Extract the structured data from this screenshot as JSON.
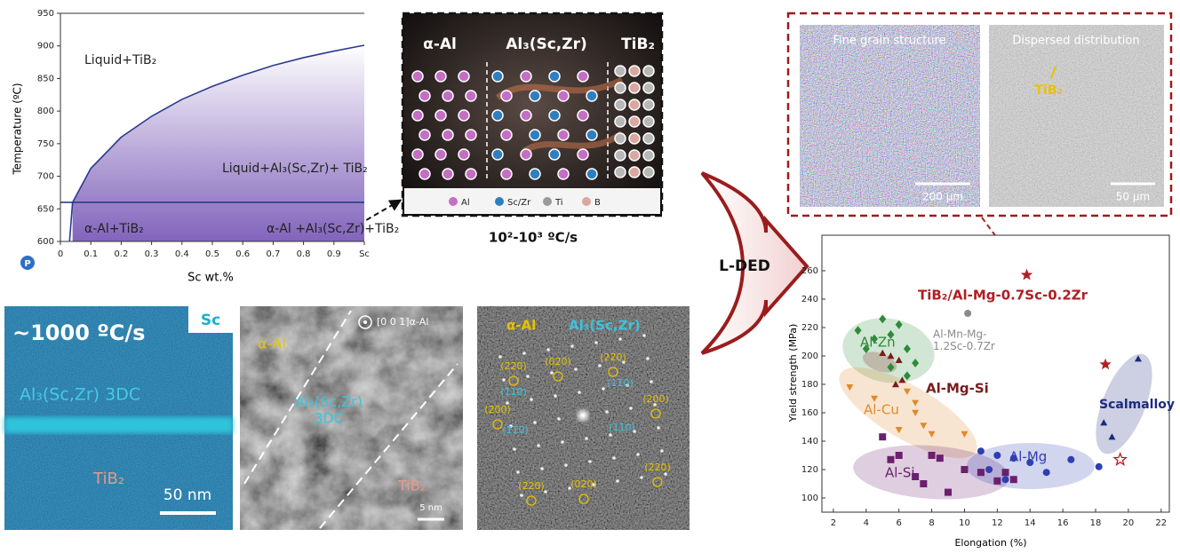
{
  "chart_data": [
    {
      "type": "line",
      "xlabel": "Sc wt.%",
      "ylabel": "Temperature (ºC)",
      "xlim": [
        0,
        1
      ],
      "ylim": [
        600,
        950
      ],
      "xticks": [
        0,
        0.1,
        0.2,
        0.3,
        0.4,
        0.5,
        0.6,
        0.7,
        0.8,
        0.9,
        {
          "value": 1,
          "label": "Sc"
        }
      ],
      "yticks": [
        600,
        650,
        700,
        750,
        800,
        850,
        900,
        950
      ],
      "annotations": [
        "Liquid+TiB₂",
        "Liquid+Al₃(Sc,Zr)+ TiB₂",
        "α-Al+TiB₂",
        "α-Al +Al₃(Sc,Zr)+TiB₂"
      ],
      "series": [
        {
          "color": "#2b3a8f",
          "fill": "#7b5cb8",
          "x": [
            0.04,
            0.1,
            0.2,
            0.3,
            0.4,
            0.5,
            0.6,
            0.7,
            0.8,
            0.9,
            1.0
          ],
          "values": [
            660,
            712,
            760,
            792,
            818,
            838,
            855,
            870,
            882,
            892,
            901
          ]
        },
        {
          "color": "#2b3a8f",
          "x": [
            0,
            1
          ],
          "values": [
            660,
            660
          ]
        },
        {
          "color": "#2b3a8f",
          "x": [
            0.03,
            0.04
          ],
          "values": [
            600,
            660
          ]
        }
      ]
    },
    {
      "type": "scatter",
      "xlabel": "Elongation (%)",
      "ylabel": "Yield strength (MPa)",
      "xlim": [
        1.3,
        22.5
      ],
      "ylim": [
        90,
        285
      ],
      "xticks": [
        2,
        4,
        6,
        8,
        10,
        12,
        14,
        16,
        18,
        20,
        22
      ],
      "yticks": [
        100,
        120,
        140,
        160,
        180,
        200,
        220,
        240,
        260
      ],
      "series": [
        {
          "name": "Al-Zn",
          "color": "#2e8b3a",
          "marker": "diamond",
          "x": [
            3.5,
            4.5,
            5,
            5.5,
            6,
            6.5,
            4,
            5.5,
            6.5,
            7
          ],
          "values": [
            218,
            212,
            226,
            215,
            222,
            205,
            205,
            192,
            186,
            195
          ]
        },
        {
          "name": "Al-Mg-Si",
          "color": "#7a1c1c",
          "marker": "triangle",
          "x": [
            5,
            5.5,
            6,
            6.2,
            5.8
          ],
          "values": [
            202,
            200,
            197,
            183,
            180
          ]
        },
        {
          "name": "Al-Cu",
          "color": "#e08a2c",
          "marker": "triangle-down",
          "x": [
            3,
            4.5,
            6.5,
            7,
            7,
            7.5,
            8,
            10,
            6
          ],
          "values": [
            178,
            170,
            175,
            167,
            160,
            151,
            145,
            145,
            148
          ]
        },
        {
          "name": "Al-Si",
          "color": "#6b1f6e",
          "marker": "square",
          "x": [
            5,
            5.5,
            6,
            7,
            8,
            8.5,
            9,
            10,
            11,
            12,
            12.5,
            13,
            7.5
          ],
          "values": [
            143,
            127,
            130,
            115,
            130,
            128,
            104,
            120,
            118,
            112,
            118,
            113,
            110
          ]
        },
        {
          "name": "Al-Mg",
          "color": "#2f3fb0",
          "marker": "circle",
          "x": [
            11,
            12,
            13,
            14,
            15,
            16.5,
            18.2,
            11.5,
            12.5
          ],
          "values": [
            133,
            130,
            128,
            125,
            118,
            127,
            122,
            120,
            113
          ]
        },
        {
          "name": "Scalmalloy",
          "color": "#1d2a80",
          "marker": "triangle",
          "x": [
            18.5,
            19,
            20.6
          ],
          "values": [
            153,
            143,
            198
          ]
        },
        {
          "name": "Al-Mn-Mg-\n1.2Sc-0.7Zr",
          "color": "#8a8a8a",
          "marker": "circle",
          "x": [
            10.2
          ],
          "values": [
            230
          ]
        },
        {
          "name": "TiB₂/Al-Mg-0.7Sc-0.2Zr",
          "color": "#b01e23",
          "marker": "star",
          "x": [
            13.8
          ],
          "values": [
            257
          ]
        },
        {
          "color": "#b01e23",
          "marker": "star",
          "x": [
            18.6
          ],
          "values": [
            194
          ]
        },
        {
          "color": "#b01e23",
          "marker": "star-open",
          "x": [
            19.5
          ],
          "values": [
            127
          ]
        }
      ]
    }
  ],
  "schematic": {
    "labels": [
      "α-Al",
      "Al₃(Sc,Zr)",
      "TiB₂"
    ],
    "legend": [
      "Al",
      "Sc/Zr",
      "Ti",
      "B"
    ],
    "cooling_rate": "10²-10³ ºC/s"
  },
  "process": "L-DED",
  "micrographs_top": [
    {
      "title": "Fine grain structure",
      "scale": "200 μm"
    },
    {
      "title": "Dispersed distribution",
      "label": "TiB₂",
      "scale": "50 μm"
    }
  ],
  "micrographs_bottom": [
    {
      "rate": "~1000 ºC/s",
      "element": "Sc",
      "labels": [
        "Al₃(Sc,Zr) 3DC",
        "TiB₂"
      ],
      "scale": "50 nm"
    },
    {
      "zone": "[0 0 1]α-Al",
      "labels": [
        "α-Al",
        "Al₃(Sc,Zr)\n3DC",
        "TiB₂"
      ],
      "scale": "5 nm"
    },
    {
      "labels": [
        "α-Al",
        "Al₃(Sc,Zr)"
      ],
      "yellow_labels": [
        "(2̄2̄0)",
        "(02̄0)",
        "(22̄0)",
        "(2̄00)",
        "(200)",
        "(2̄20)",
        "(020)",
        "(220)"
      ],
      "cyan_labels": [
        "(1̄10)",
        "(1̄1̄0)",
        "(11̄0)",
        "(110)"
      ]
    }
  ]
}
